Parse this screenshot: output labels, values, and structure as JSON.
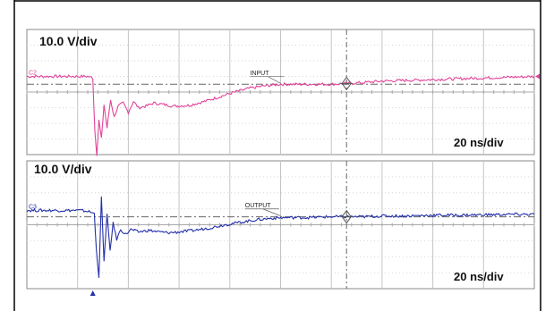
{
  "chart_data": [
    {
      "type": "line",
      "channel": "C2",
      "scale": "10.0 V/div",
      "timebase": "20 ns/div",
      "trace_label": "INPUT",
      "color": "#e0449a",
      "xlim": [
        0,
        10
      ],
      "ylim": [
        -4,
        4
      ],
      "x_unit": "div",
      "y_unit": "div",
      "grid": true,
      "cursor_x": 6.3,
      "reference_level": 0.5,
      "trigger_position": 1.3,
      "series": [
        {
          "x": [
            0,
            0.5,
            1.0,
            1.2,
            1.3,
            1.34,
            1.38,
            1.42,
            1.47,
            1.52,
            1.58,
            1.65,
            1.72,
            1.8,
            1.9,
            2.0,
            2.1,
            2.2,
            2.35,
            2.5,
            2.7,
            2.9,
            3.2,
            3.5,
            3.8,
            4.1,
            4.4,
            4.7,
            5.0,
            5.3,
            5.6,
            6.0,
            6.3,
            6.6,
            7.0,
            7.5,
            8.0,
            8.5,
            9.0,
            9.5,
            10.0
          ],
          "values": [
            1.0,
            1.0,
            1.0,
            1.0,
            0.9,
            -2.5,
            -4.0,
            -1.8,
            -3.0,
            -0.8,
            -2.3,
            -0.5,
            -1.6,
            -0.9,
            -0.7,
            -1.3,
            -0.6,
            -1.0,
            -0.9,
            -0.7,
            -0.8,
            -0.9,
            -0.85,
            -0.6,
            -0.3,
            0.0,
            0.25,
            0.4,
            0.5,
            0.5,
            0.5,
            0.5,
            0.55,
            0.6,
            0.7,
            0.75,
            0.8,
            0.85,
            0.9,
            0.95,
            1.0
          ]
        }
      ]
    },
    {
      "type": "line",
      "channel": "C3",
      "scale": "10.0 V/div",
      "timebase": "20 ns/div",
      "trace_label": "OUTPUT",
      "color": "#2430a8",
      "xlim": [
        0,
        10
      ],
      "ylim": [
        -4,
        4
      ],
      "x_unit": "div",
      "y_unit": "div",
      "grid": true,
      "cursor_x": 6.3,
      "reference_level": 0.5,
      "trigger_position": 1.3,
      "series": [
        {
          "x": [
            0,
            0.5,
            1.0,
            1.2,
            1.33,
            1.37,
            1.42,
            1.47,
            1.52,
            1.58,
            1.64,
            1.7,
            1.77,
            1.85,
            1.95,
            2.05,
            2.2,
            2.4,
            2.6,
            2.8,
            3.0,
            3.3,
            3.6,
            3.9,
            4.2,
            4.5,
            4.8,
            5.1,
            5.5,
            6.0,
            6.3,
            6.6,
            7.0,
            7.5,
            8.0,
            8.5,
            9.0,
            9.5,
            10.0
          ],
          "values": [
            0.9,
            0.9,
            0.9,
            0.85,
            0.7,
            -1.5,
            -3.4,
            1.7,
            -2.3,
            0.6,
            -1.6,
            0.1,
            -0.9,
            -0.3,
            -0.6,
            -0.3,
            -0.45,
            -0.35,
            -0.45,
            -0.5,
            -0.45,
            -0.35,
            -0.2,
            0.0,
            0.15,
            0.3,
            0.4,
            0.45,
            0.45,
            0.5,
            0.5,
            0.5,
            0.55,
            0.55,
            0.6,
            0.6,
            0.62,
            0.65,
            0.65
          ]
        }
      ]
    }
  ]
}
